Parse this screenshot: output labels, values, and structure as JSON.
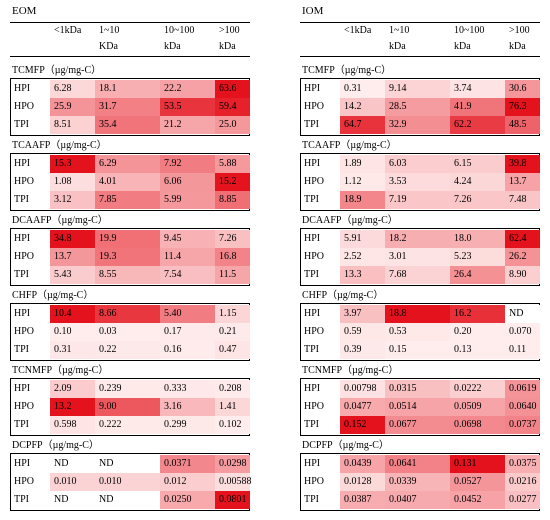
{
  "chart_data": {
    "type": "heatmap",
    "panels": [
      {
        "id": "eom",
        "title": "EOM",
        "columns": [
          {
            "line1": "<1kDa",
            "line2": ""
          },
          {
            "line1": "1~10",
            "line2": "KDa"
          },
          {
            "line1": "10~100",
            "line2": "kDa"
          },
          {
            "line1": ">100",
            "line2": "kDa"
          }
        ],
        "blocks": [
          {
            "name": "TCMFP（µg/mg-C）",
            "rows": [
              {
                "label": "HPI",
                "values": [
                  "6.28",
                  "18.1",
                  "22.2",
                  "63.6"
                ]
              },
              {
                "label": "HPO",
                "values": [
                  "25.9",
                  "31.7",
                  "53.5",
                  "59.4"
                ]
              },
              {
                "label": "TPI",
                "values": [
                  "8.51",
                  "35.4",
                  "21.2",
                  "25.0"
                ]
              }
            ]
          },
          {
            "name": "TCAAFP（µg/mg-C）",
            "rows": [
              {
                "label": "HPI",
                "values": [
                  "15.3",
                  "6.29",
                  "7.92",
                  "5.88"
                ]
              },
              {
                "label": "HPO",
                "values": [
                  "1.08",
                  "4.01",
                  "6.06",
                  "15.2"
                ]
              },
              {
                "label": "TPI",
                "values": [
                  "3.12",
                  "7.85",
                  "5.99",
                  "8.85"
                ]
              }
            ]
          },
          {
            "name": "DCAAFP（µg/mg-C）",
            "rows": [
              {
                "label": "HPI",
                "values": [
                  "34.8",
                  "19.9",
                  "9.45",
                  "7.26"
                ]
              },
              {
                "label": "HPO",
                "values": [
                  "13.7",
                  "19.3",
                  "11.4",
                  "16.8"
                ]
              },
              {
                "label": "TPI",
                "values": [
                  "5.43",
                  "8.55",
                  "7.54",
                  "11.5"
                ]
              }
            ]
          },
          {
            "name": "CHFP（µg/mg-C）",
            "rows": [
              {
                "label": "HPI",
                "values": [
                  "10.4",
                  "8.66",
                  "5.40",
                  "1.15"
                ]
              },
              {
                "label": "HPO",
                "values": [
                  "0.10",
                  "0.03",
                  "0.17",
                  "0.21"
                ]
              },
              {
                "label": "TPI",
                "values": [
                  "0.31",
                  "0.22",
                  "0.16",
                  "0.47"
                ]
              }
            ]
          },
          {
            "name": "TCNMFP（µg/mg-C）",
            "rows": [
              {
                "label": "HPI",
                "values": [
                  "2.09",
                  "0.239",
                  "0.333",
                  "0.208"
                ]
              },
              {
                "label": "HPO",
                "values": [
                  "13.2",
                  "9.00",
                  "3.16",
                  "1.41"
                ]
              },
              {
                "label": "TPI",
                "values": [
                  "0.598",
                  "0.222",
                  "0.299",
                  "0.102"
                ]
              }
            ]
          },
          {
            "name": "DCPFP（µg/mg-C）",
            "rows": [
              {
                "label": "HPI",
                "values": [
                  "ND",
                  "ND",
                  "0.0371",
                  "0.0298"
                ]
              },
              {
                "label": "HPO",
                "values": [
                  "0.010",
                  "0.010",
                  "0.012",
                  "0.00588"
                ]
              },
              {
                "label": "TPI",
                "values": [
                  "ND",
                  "ND",
                  "0.0250",
                  "0.0801"
                ]
              }
            ]
          }
        ]
      },
      {
        "id": "iom",
        "title": "IOM",
        "columns": [
          {
            "line1": "<1kDa",
            "line2": ""
          },
          {
            "line1": "1~10",
            "line2": "kDa"
          },
          {
            "line1": "10~100",
            "line2": "kDa"
          },
          {
            "line1": ">100",
            "line2": "kDa"
          }
        ],
        "blocks": [
          {
            "name": "TCMFP（µg/mg-C）",
            "rows": [
              {
                "label": "HPI",
                "values": [
                  "0.31",
                  "9.14",
                  "3.74",
                  "30.6"
                ]
              },
              {
                "label": "HPO",
                "values": [
                  "14.2",
                  "28.5",
                  "41.9",
                  "76.3"
                ]
              },
              {
                "label": "TPI",
                "values": [
                  "64.7",
                  "32.9",
                  "62.2",
                  "48.5"
                ]
              }
            ]
          },
          {
            "name": "TCAAFP（µg/mg-C）",
            "rows": [
              {
                "label": "HPI",
                "values": [
                  "1.89",
                  "6.03",
                  "6.15",
                  "39.8"
                ]
              },
              {
                "label": "HPO",
                "values": [
                  "1.12",
                  "3.53",
                  "4.24",
                  "13.7"
                ]
              },
              {
                "label": "TPI",
                "values": [
                  "18.9",
                  "7.19",
                  "7.26",
                  "7.48"
                ]
              }
            ]
          },
          {
            "name": "DCAAFP（µg/mg-C）",
            "rows": [
              {
                "label": "HPI",
                "values": [
                  "5.91",
                  "18.2",
                  "18.0",
                  "62.4"
                ]
              },
              {
                "label": "HPO",
                "values": [
                  "2.52",
                  "3.01",
                  "5.23",
                  "26.2"
                ]
              },
              {
                "label": "TPI",
                "values": [
                  "13.3",
                  "7.68",
                  "26.4",
                  "8.90"
                ]
              }
            ]
          },
          {
            "name": "CHFP（µg/mg-C）",
            "rows": [
              {
                "label": "HPI",
                "values": [
                  "3.97",
                  "18.8",
                  "16.2",
                  "ND"
                ]
              },
              {
                "label": "HPO",
                "values": [
                  "0.59",
                  "0.53",
                  "0.20",
                  "0.070"
                ]
              },
              {
                "label": "TPI",
                "values": [
                  "0.39",
                  "0.15",
                  "0.13",
                  "0.11"
                ]
              }
            ]
          },
          {
            "name": "TCNMFP（µg/mg-C）",
            "rows": [
              {
                "label": "HPI",
                "values": [
                  "0.00798",
                  "0.0315",
                  "0.0222",
                  "0.0619"
                ]
              },
              {
                "label": "HPO",
                "values": [
                  "0.0477",
                  "0.0514",
                  "0.0509",
                  "0.0640"
                ]
              },
              {
                "label": "TPI",
                "values": [
                  "0.152",
                  "0.0677",
                  "0.0698",
                  "0.0737"
                ]
              }
            ]
          },
          {
            "name": "DCPFP（µg/mg-C）",
            "rows": [
              {
                "label": "HPI",
                "values": [
                  "0.0439",
                  "0.0641",
                  "0.131",
                  "0.0375"
                ]
              },
              {
                "label": "HPO",
                "values": [
                  "0.0128",
                  "0.0339",
                  "0.0527",
                  "0.0216"
                ]
              },
              {
                "label": "TPI",
                "values": [
                  "0.0387",
                  "0.0407",
                  "0.0452",
                  "0.0277"
                ]
              }
            ]
          }
        ]
      }
    ]
  }
}
